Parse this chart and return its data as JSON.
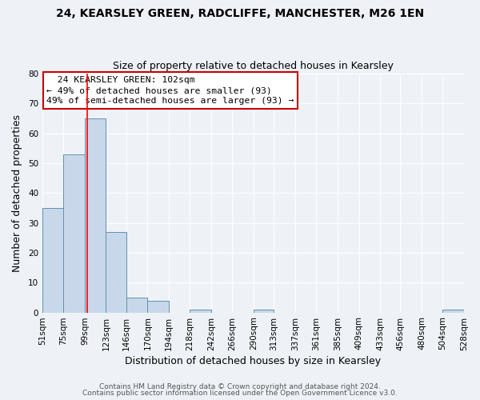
{
  "title": "24, KEARSLEY GREEN, RADCLIFFE, MANCHESTER, M26 1EN",
  "subtitle": "Size of property relative to detached houses in Kearsley",
  "xlabel": "Distribution of detached houses by size in Kearsley",
  "ylabel": "Number of detached properties",
  "bin_edges": [
    51,
    75,
    99,
    123,
    146,
    170,
    194,
    218,
    242,
    266,
    290,
    313,
    337,
    361,
    385,
    409,
    433,
    456,
    480,
    504,
    528
  ],
  "bin_counts": [
    35,
    53,
    65,
    27,
    5,
    4,
    0,
    1,
    0,
    0,
    1,
    0,
    0,
    0,
    0,
    0,
    0,
    0,
    0,
    1
  ],
  "bar_color": "#c8d8ea",
  "bar_edge_color": "#6090b0",
  "red_line_x": 102,
  "ylim": [
    0,
    80
  ],
  "yticks": [
    0,
    10,
    20,
    30,
    40,
    50,
    60,
    70,
    80
  ],
  "annotation_title": "24 KEARSLEY GREEN: 102sqm",
  "annotation_line1": "← 49% of detached houses are smaller (93)",
  "annotation_line2": "49% of semi-detached houses are larger (93) →",
  "annotation_box_color": "#ffffff",
  "annotation_box_edge": "#cc0000",
  "footer1": "Contains HM Land Registry data © Crown copyright and database right 2024.",
  "footer2": "Contains public sector information licensed under the Open Government Licence v3.0.",
  "background_color": "#eef2f7",
  "grid_color": "#ffffff",
  "title_fontsize": 10,
  "subtitle_fontsize": 9,
  "axis_label_fontsize": 9,
  "tick_label_fontsize": 7.5
}
